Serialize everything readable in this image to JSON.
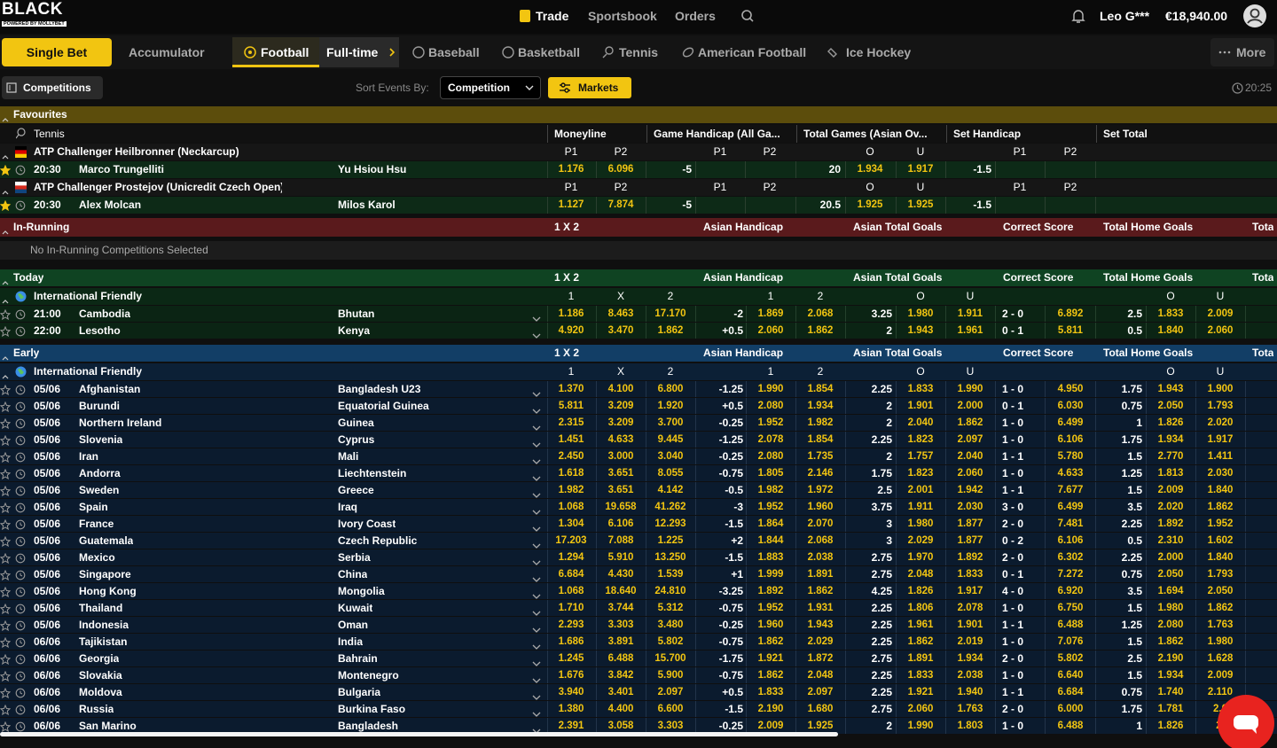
{
  "header": {
    "logo": "BLACK",
    "logo_sub": "POWERED BY MOLLYBET",
    "nav": [
      "Trade",
      "Sportsbook",
      "Orders"
    ],
    "user": "Leo G***",
    "balance": "€18,940.00"
  },
  "tabs": {
    "bet_types": [
      "Single Bet",
      "Accumulator"
    ],
    "sports": [
      "Football",
      "Full-time",
      "Baseball",
      "Basketball",
      "Tennis",
      "American Football",
      "Ice Hockey"
    ],
    "more": "More"
  },
  "toolbar": {
    "competitions": "Competitions",
    "sort_label": "Sort Events By:",
    "sort_value": "Competition",
    "markets": "Markets",
    "clock": "20:25"
  },
  "favourites": {
    "title": "Favourites",
    "sport": "Tennis",
    "columns": [
      "Moneyline",
      "Game Handicap (All Ga...",
      "Total Games (Asian Ov...",
      "Set Handicap",
      "Set Total"
    ],
    "tournaments": [
      {
        "name": "ATP Challenger Heilbronner (Neckarcup)",
        "subheaders": [
          "P1",
          "P2",
          "P1",
          "P2",
          "O",
          "U",
          "P1",
          "P2"
        ],
        "match": {
          "time": "20:30",
          "p1": "Marco Trungelliti",
          "p2": "Yu Hsiou Hsu",
          "moneyline": [
            "1.176",
            "6.096"
          ],
          "game_handicap": "-5",
          "total_games": [
            "20",
            "1.934",
            "1.917"
          ],
          "set_handicap": "-1.5"
        }
      },
      {
        "name": "ATP Challenger Prostejov (Unicredit Czech Open)",
        "subheaders": [
          "P1",
          "P2",
          "P1",
          "P2",
          "O",
          "U",
          "P1",
          "P2"
        ],
        "match": {
          "time": "20:30",
          "p1": "Alex Molcan",
          "p2": "Milos Karol",
          "moneyline": [
            "1.127",
            "7.874"
          ],
          "game_handicap": "-5",
          "total_games": [
            "20.5",
            "1.925",
            "1.925"
          ],
          "set_handicap": "-1.5"
        }
      }
    ]
  },
  "in_running": {
    "title": "In-Running",
    "columns": [
      "1 X 2",
      "Asian Handicap",
      "Asian Total Goals",
      "Correct Score",
      "Total Home Goals",
      "Tota"
    ],
    "message": "No In-Running Competitions Selected"
  },
  "today": {
    "title": "Today",
    "columns": [
      "1 X 2",
      "Asian Handicap",
      "Asian Total Goals",
      "Correct Score",
      "Total Home Goals",
      "Tota"
    ],
    "competition": "International Friendly",
    "subheaders": [
      "1",
      "X",
      "2",
      "1",
      "2",
      "O",
      "U",
      "O",
      "U"
    ],
    "matches": [
      {
        "time": "21:00",
        "home": "Cambodia",
        "away": "Bhutan",
        "odds": [
          "1.186",
          "8.463",
          "17.170",
          "-2",
          "1.869",
          "2.068",
          "3.25",
          "1.980",
          "1.911",
          "2 - 0",
          "6.892",
          "2.5",
          "1.833",
          "2.009"
        ]
      },
      {
        "time": "22:00",
        "home": "Lesotho",
        "away": "Kenya",
        "odds": [
          "4.920",
          "3.470",
          "1.862",
          "+0.5",
          "2.060",
          "1.862",
          "2",
          "1.943",
          "1.961",
          "0 - 1",
          "5.811",
          "0.5",
          "1.840",
          "2.060"
        ]
      }
    ]
  },
  "early": {
    "title": "Early",
    "columns": [
      "1 X 2",
      "Asian Handicap",
      "Asian Total Goals",
      "Correct Score",
      "Total Home Goals",
      "Tota"
    ],
    "competition": "International Friendly",
    "subheaders": [
      "1",
      "X",
      "2",
      "1",
      "2",
      "O",
      "U",
      "O",
      "U"
    ],
    "matches": [
      {
        "time": "05/06",
        "home": "Afghanistan",
        "away": "Bangladesh U23",
        "odds": [
          "1.370",
          "4.100",
          "6.800",
          "-1.25",
          "1.990",
          "1.854",
          "2.25",
          "1.833",
          "1.990",
          "1 - 0",
          "4.950",
          "1.75",
          "1.943",
          "1.900"
        ]
      },
      {
        "time": "05/06",
        "home": "Burundi",
        "away": "Equatorial Guinea",
        "odds": [
          "5.811",
          "3.209",
          "1.920",
          "+0.5",
          "2.080",
          "1.934",
          "2",
          "1.901",
          "2.000",
          "0 - 1",
          "6.030",
          "0.75",
          "2.050",
          "1.793"
        ]
      },
      {
        "time": "05/06",
        "home": "Northern Ireland",
        "away": "Guinea",
        "odds": [
          "2.315",
          "3.209",
          "3.700",
          "-0.25",
          "1.952",
          "1.982",
          "2",
          "2.040",
          "1.862",
          "1 - 0",
          "6.499",
          "1",
          "1.826",
          "2.020"
        ]
      },
      {
        "time": "05/06",
        "home": "Slovenia",
        "away": "Cyprus",
        "odds": [
          "1.451",
          "4.633",
          "9.445",
          "-1.25",
          "2.078",
          "1.854",
          "2.25",
          "1.823",
          "2.097",
          "1 - 0",
          "6.106",
          "1.75",
          "1.934",
          "1.917"
        ]
      },
      {
        "time": "05/06",
        "home": "Iran",
        "away": "Mali",
        "odds": [
          "2.450",
          "3.000",
          "3.040",
          "-0.25",
          "2.080",
          "1.735",
          "2",
          "1.757",
          "2.040",
          "1 - 1",
          "5.780",
          "1.5",
          "2.770",
          "1.411"
        ]
      },
      {
        "time": "05/06",
        "home": "Andorra",
        "away": "Liechtenstein",
        "odds": [
          "1.618",
          "3.651",
          "8.055",
          "-0.75",
          "1.805",
          "2.146",
          "1.75",
          "1.823",
          "2.060",
          "1 - 0",
          "4.633",
          "1.25",
          "1.813",
          "2.030"
        ]
      },
      {
        "time": "05/06",
        "home": "Sweden",
        "away": "Greece",
        "odds": [
          "1.982",
          "3.651",
          "4.142",
          "-0.5",
          "1.982",
          "1.972",
          "2.5",
          "2.001",
          "1.942",
          "1 - 1",
          "7.677",
          "1.5",
          "2.009",
          "1.840"
        ]
      },
      {
        "time": "05/06",
        "home": "Spain",
        "away": "Iraq",
        "odds": [
          "1.068",
          "19.658",
          "41.262",
          "-3",
          "1.952",
          "1.960",
          "3.75",
          "1.911",
          "2.030",
          "3 - 0",
          "6.499",
          "3.5",
          "2.020",
          "1.862"
        ]
      },
      {
        "time": "05/06",
        "home": "France",
        "away": "Ivory Coast",
        "odds": [
          "1.304",
          "6.106",
          "12.293",
          "-1.5",
          "1.864",
          "2.070",
          "3",
          "1.980",
          "1.877",
          "2 - 0",
          "7.481",
          "2.25",
          "1.892",
          "1.952"
        ]
      },
      {
        "time": "05/06",
        "home": "Guatemala",
        "away": "Czech Republic",
        "odds": [
          "17.203",
          "7.088",
          "1.225",
          "+2",
          "1.844",
          "2.068",
          "3",
          "2.029",
          "1.877",
          "0 - 2",
          "6.106",
          "0.5",
          "2.310",
          "1.602"
        ]
      },
      {
        "time": "05/06",
        "home": "Mexico",
        "away": "Serbia",
        "odds": [
          "1.294",
          "5.910",
          "13.250",
          "-1.5",
          "1.883",
          "2.038",
          "2.75",
          "1.970",
          "1.892",
          "2 - 0",
          "6.302",
          "2.25",
          "2.000",
          "1.840"
        ]
      },
      {
        "time": "05/06",
        "home": "Singapore",
        "away": "China",
        "odds": [
          "6.684",
          "4.430",
          "1.539",
          "+1",
          "1.999",
          "1.891",
          "2.75",
          "2.048",
          "1.833",
          "0 - 1",
          "7.272",
          "0.75",
          "2.050",
          "1.793"
        ]
      },
      {
        "time": "05/06",
        "home": "Hong Kong",
        "away": "Mongolia",
        "odds": [
          "1.068",
          "18.640",
          "24.810",
          "-3.25",
          "1.892",
          "1.862",
          "4.25",
          "1.826",
          "1.917",
          "4 - 0",
          "6.920",
          "3.5",
          "1.694",
          "2.050"
        ]
      },
      {
        "time": "05/06",
        "home": "Thailand",
        "away": "Kuwait",
        "odds": [
          "1.710",
          "3.744",
          "5.312",
          "-0.75",
          "1.952",
          "1.931",
          "2.25",
          "1.806",
          "2.078",
          "1 - 0",
          "6.750",
          "1.5",
          "1.980",
          "1.862"
        ]
      },
      {
        "time": "05/06",
        "home": "Indonesia",
        "away": "Oman",
        "odds": [
          "2.293",
          "3.303",
          "3.480",
          "-0.25",
          "1.960",
          "1.943",
          "2.25",
          "1.961",
          "1.901",
          "1 - 1",
          "6.488",
          "1.25",
          "2.080",
          "1.763"
        ]
      },
      {
        "time": "06/06",
        "home": "Tajikistan",
        "away": "India",
        "odds": [
          "1.686",
          "3.891",
          "5.802",
          "-0.75",
          "1.862",
          "2.029",
          "2.25",
          "1.862",
          "2.019",
          "1 - 0",
          "7.076",
          "1.5",
          "1.862",
          "1.980"
        ]
      },
      {
        "time": "06/06",
        "home": "Georgia",
        "away": "Bahrain",
        "odds": [
          "1.245",
          "6.488",
          "15.700",
          "-1.75",
          "1.921",
          "1.872",
          "2.75",
          "1.891",
          "1.934",
          "2 - 0",
          "5.802",
          "2.5",
          "2.190",
          "1.628"
        ]
      },
      {
        "time": "06/06",
        "home": "Slovakia",
        "away": "Montenegro",
        "odds": [
          "1.676",
          "3.842",
          "5.900",
          "-0.75",
          "1.862",
          "2.048",
          "2.25",
          "1.833",
          "2.038",
          "1 - 0",
          "6.640",
          "1.5",
          "1.934",
          "2.009"
        ]
      },
      {
        "time": "06/06",
        "home": "Moldova",
        "away": "Bulgaria",
        "odds": [
          "3.940",
          "3.401",
          "2.097",
          "+0.5",
          "1.833",
          "2.097",
          "2.25",
          "1.921",
          "1.940",
          "1 - 1",
          "6.684",
          "0.75",
          "1.740",
          "2.110"
        ]
      },
      {
        "time": "06/06",
        "home": "Russia",
        "away": "Burkina Faso",
        "odds": [
          "1.380",
          "4.400",
          "6.600",
          "-1.5",
          "2.190",
          "1.680",
          "2.75",
          "2.060",
          "1.763",
          "2 - 0",
          "6.000",
          "1.75",
          "1.781",
          "2.0"
        ]
      },
      {
        "time": "06/06",
        "home": "San Marino",
        "away": "Bangladesh",
        "odds": [
          "2.391",
          "3.058",
          "3.303",
          "-0.25",
          "2.009",
          "1.925",
          "2",
          "1.990",
          "1.803",
          "1 - 0",
          "6.488",
          "1",
          "1.826",
          "2."
        ]
      }
    ]
  }
}
